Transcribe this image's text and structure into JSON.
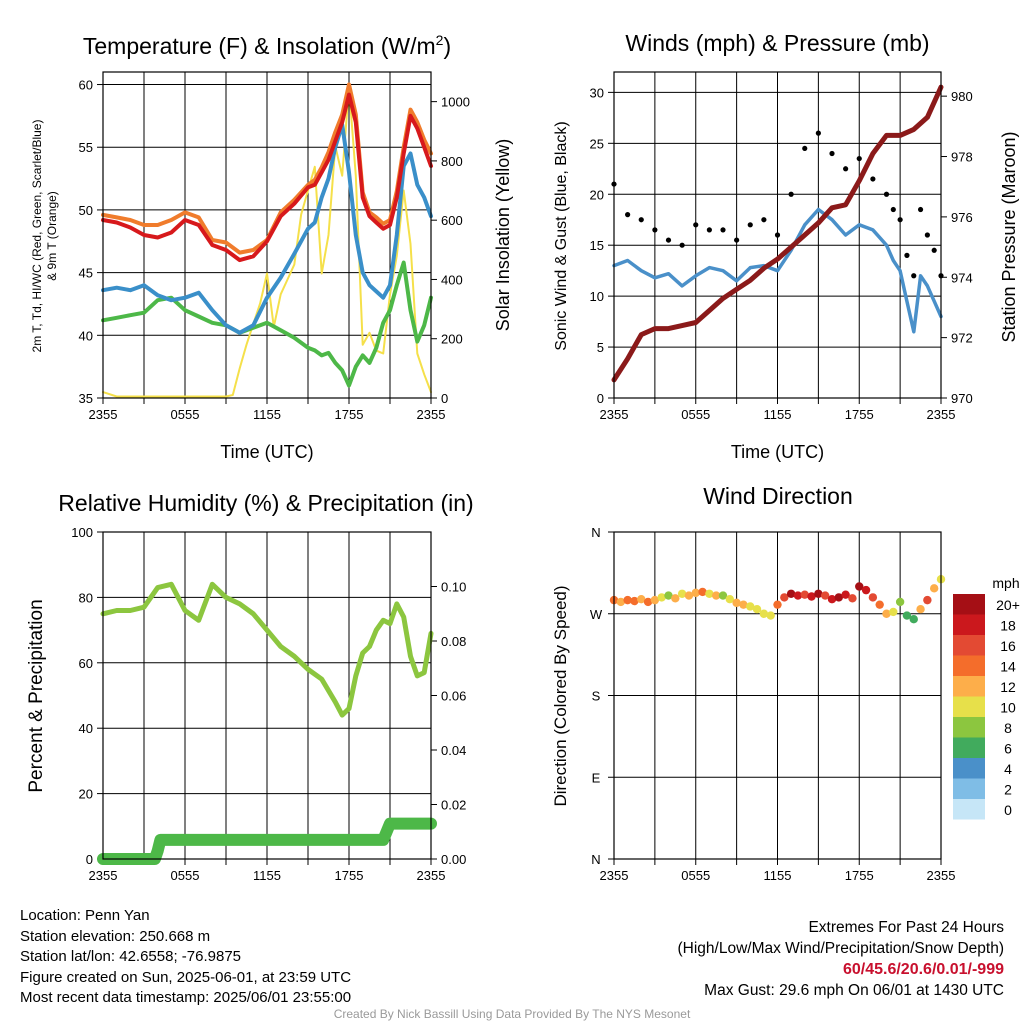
{
  "footer": {
    "location": "Location: Penn Yan",
    "elevation": "Station elevation: 250.668 m",
    "latlon": "Station lat/lon: 42.6558; -76.9875",
    "created": "Figure created on Sun, 2025-06-01, at 23:59 UTC",
    "recent": "Most recent data timestamp: 2025/06/01 23:55:00",
    "extremes_title": "Extremes For Past 24 Hours",
    "extremes_legend": "(High/Low/Max Wind/Precipitation/Snow Depth)",
    "extremes_values": "60/45.6/20.6/0.01/-999",
    "max_gust": "Max Gust: 29.6 mph On 06/01 at 1430 UTC",
    "credit": "Created By Nick Bassill Using Data Provided By The NYS Mesonet"
  },
  "colors": {
    "temp": "#d7191c",
    "temp9m": "#f07c2c",
    "hiwc": "#d7191c",
    "dewpoint": "#3a8fc9",
    "insolation": "#f5e04a",
    "rh": "#8cc63f",
    "precip": "#4db848",
    "wind": "#4a90c9",
    "gust": "#000000",
    "pressure": "#8b1a1a"
  },
  "chart_data": [
    {
      "type": "line",
      "title": "Temperature (F) & Insolation (W/m²)",
      "xlabel": "Time (UTC)",
      "ylabel": "2m T, Td, HI/WC (Red, Green, Scarlet/Blue) & 9m T (Orange)",
      "ylabel_line1": "2m T, Td, HI/WC (Red, Green, Scarlet/Blue)",
      "ylabel_line2": "& 9m T (Orange)",
      "y2label": "Solar Insolation (Yellow)",
      "xticks": [
        "2355",
        "0555",
        "1155",
        "1755",
        "2355"
      ],
      "xlim": [
        0,
        24
      ],
      "ylim": [
        35,
        61
      ],
      "y2lim": [
        0,
        1100
      ],
      "yticks": [
        35,
        40,
        45,
        50,
        55,
        60
      ],
      "y2ticks": [
        0,
        200,
        400,
        600,
        800,
        1000
      ],
      "series": [
        {
          "name": "2m T",
          "x": [
            0,
            1,
            2,
            3,
            4,
            5,
            6,
            7,
            8,
            9,
            10,
            11,
            12,
            13,
            14,
            15,
            15.5,
            16,
            16.5,
            17,
            17.5,
            18,
            18.5,
            19,
            19.5,
            20,
            20.5,
            21,
            21.5,
            22,
            22.5,
            23,
            23.5,
            24
          ],
          "values": [
            49.2,
            49.0,
            48.6,
            48.0,
            47.8,
            48.2,
            49.2,
            48.8,
            47.2,
            46.8,
            46.0,
            46.3,
            47.5,
            49.5,
            50.5,
            51.8,
            52.0,
            53.0,
            54.0,
            55.5,
            57.0,
            59.2,
            57.0,
            51.0,
            49.5,
            49.0,
            48.5,
            48.8,
            51.0,
            54.5,
            57.5,
            56.5,
            55.0,
            53.5
          ]
        },
        {
          "name": "9m T",
          "x": [
            0,
            1,
            2,
            3,
            4,
            5,
            6,
            7,
            8,
            9,
            10,
            11,
            12,
            13,
            14,
            15,
            15.5,
            16,
            16.5,
            17,
            17.5,
            18,
            18.5,
            19,
            19.5,
            20,
            20.5,
            21,
            21.5,
            22,
            22.5,
            23,
            23.5,
            24
          ],
          "values": [
            49.6,
            49.4,
            49.2,
            48.8,
            48.8,
            49.2,
            49.8,
            49.4,
            47.6,
            47.4,
            46.6,
            46.8,
            47.6,
            49.8,
            50.8,
            52.0,
            52.4,
            53.4,
            54.6,
            56.2,
            57.6,
            60.0,
            57.6,
            51.4,
            49.8,
            49.4,
            48.9,
            49.2,
            51.5,
            55.0,
            58.0,
            57.0,
            55.6,
            54.5
          ]
        },
        {
          "name": "Td",
          "x": [
            0,
            1,
            2,
            3,
            4,
            5,
            6,
            7,
            8,
            9,
            10,
            11,
            12,
            13,
            14,
            15,
            15.5,
            16,
            16.5,
            17,
            17.5,
            18,
            18.5,
            19,
            19.5,
            20,
            20.5,
            21,
            21.5,
            22,
            22.5,
            23,
            23.5,
            24
          ],
          "values": [
            41.2,
            41.4,
            41.6,
            41.8,
            42.8,
            43.0,
            42.0,
            41.5,
            41.0,
            40.8,
            40.2,
            40.6,
            41.0,
            40.4,
            39.8,
            39.0,
            38.8,
            38.4,
            38.6,
            37.8,
            37.2,
            36.0,
            37.5,
            38.4,
            37.8,
            39.0,
            41.0,
            42.0,
            44.0,
            45.8,
            42.0,
            39.5,
            40.8,
            43.0
          ]
        },
        {
          "name": "HI/WC",
          "x": [
            0,
            1,
            2,
            3,
            4,
            5,
            6,
            7,
            8,
            9,
            10,
            11,
            12,
            13,
            14,
            15,
            15.5,
            16,
            16.5,
            17,
            17.5,
            18,
            18.5,
            19,
            19.5,
            20,
            20.5,
            21,
            21.5,
            22,
            22.5,
            23,
            23.5,
            24
          ],
          "values": [
            43.6,
            43.8,
            43.6,
            44.0,
            43.2,
            42.8,
            43.0,
            43.4,
            42.0,
            40.8,
            40.2,
            40.8,
            43.0,
            44.6,
            46.5,
            48.5,
            49.0,
            51.0,
            52.5,
            55.0,
            56.8,
            53.0,
            48.0,
            45.0,
            44.0,
            43.5,
            43.0,
            44.0,
            48.0,
            53.5,
            54.5,
            52.0,
            51.0,
            49.5
          ]
        },
        {
          "name": "Insolation",
          "axis": "y2",
          "x": [
            0,
            1,
            2,
            3,
            4,
            5,
            6,
            7,
            8,
            9,
            9.5,
            10,
            10.5,
            11,
            11.5,
            12,
            12.5,
            13,
            13.5,
            14,
            14.5,
            15,
            15.5,
            16,
            16.5,
            17,
            17.5,
            18,
            18.5,
            19,
            19.5,
            20,
            20.5,
            21,
            21.5,
            22,
            22.5,
            23,
            23.5,
            24
          ],
          "values": [
            20,
            5,
            5,
            5,
            5,
            5,
            5,
            5,
            5,
            5,
            10,
            100,
            180,
            250,
            320,
            420,
            240,
            350,
            400,
            450,
            620,
            700,
            780,
            420,
            550,
            850,
            750,
            1050,
            750,
            180,
            220,
            160,
            150,
            350,
            480,
            700,
            520,
            150,
            80,
            20
          ]
        }
      ]
    },
    {
      "type": "line",
      "title": "Winds (mph) & Pressure (mb)",
      "xlabel": "Time (UTC)",
      "ylabel": "Sonic Wind & Gust (Blue, Black)",
      "y2label": "Station Pressure (Maroon)",
      "xticks": [
        "2355",
        "0555",
        "1155",
        "1755",
        "2355"
      ],
      "xlim": [
        0,
        24
      ],
      "ylim": [
        0,
        32
      ],
      "y2lim": [
        970,
        980.8
      ],
      "yticks": [
        0,
        5,
        10,
        15,
        20,
        25,
        30
      ],
      "y2ticks": [
        970,
        972,
        974,
        976,
        978,
        980
      ],
      "series": [
        {
          "name": "Wind",
          "x": [
            0,
            1,
            2,
            3,
            4,
            5,
            6,
            7,
            8,
            9,
            10,
            11,
            12,
            13,
            14,
            15,
            16,
            17,
            18,
            19,
            20,
            20.5,
            21,
            21.5,
            22,
            22.5,
            23,
            23.5,
            24
          ],
          "values": [
            13.0,
            13.5,
            12.5,
            11.8,
            12.2,
            11.0,
            12.0,
            12.8,
            12.5,
            11.5,
            12.8,
            13.0,
            12.5,
            14.5,
            17.0,
            18.5,
            17.5,
            16.0,
            17.0,
            16.5,
            15.0,
            13.5,
            12.5,
            9.5,
            6.5,
            12.0,
            11.0,
            9.5,
            8.0
          ]
        },
        {
          "name": "Gust",
          "x": [
            0,
            1,
            2,
            3,
            4,
            5,
            6,
            7,
            8,
            9,
            10,
            11,
            12,
            13,
            14,
            15,
            16,
            17,
            18,
            19,
            20,
            20.5,
            21,
            21.5,
            22,
            22.5,
            23,
            23.5,
            24
          ],
          "values": [
            21.0,
            18.0,
            17.5,
            16.5,
            15.5,
            15.0,
            17.0,
            16.5,
            16.5,
            15.5,
            17.0,
            17.5,
            16.0,
            20.0,
            24.5,
            26.0,
            24.0,
            22.5,
            23.5,
            21.5,
            20.0,
            18.5,
            17.5,
            14.0,
            12.0,
            18.5,
            16.0,
            14.5,
            12.0
          ]
        },
        {
          "name": "Pressure",
          "axis": "y2",
          "x": [
            0,
            1,
            2,
            3,
            4,
            5,
            6,
            7,
            8,
            9,
            10,
            11,
            12,
            13,
            14,
            15,
            16,
            17,
            18,
            19,
            20,
            21,
            22,
            23,
            24
          ],
          "values": [
            970.6,
            971.3,
            972.1,
            972.3,
            972.3,
            972.4,
            972.5,
            972.9,
            973.3,
            973.6,
            973.9,
            974.3,
            974.6,
            975.0,
            975.4,
            975.8,
            976.3,
            976.4,
            977.2,
            978.1,
            978.7,
            978.7,
            978.9,
            979.3,
            980.3
          ]
        }
      ]
    },
    {
      "type": "line",
      "title": "Relative Humidity (%) & Precipitation (in)",
      "ylabel": "Percent & Precipitation",
      "xticks": [
        "2355",
        "0555",
        "1155",
        "1755",
        "2355"
      ],
      "xlim": [
        0,
        24
      ],
      "ylim": [
        0,
        100
      ],
      "y2lim": [
        0,
        0.12
      ],
      "yticks": [
        0,
        20,
        40,
        60,
        80,
        100
      ],
      "y2ticks": [
        0.0,
        0.02,
        0.04,
        0.06,
        0.08,
        0.1
      ],
      "series": [
        {
          "name": "RH",
          "x": [
            0,
            1,
            2,
            3,
            4,
            5,
            6,
            7,
            8,
            9,
            10,
            11,
            12,
            13,
            14,
            15,
            16,
            17,
            17.5,
            18,
            18.5,
            19,
            19.5,
            20,
            20.5,
            21,
            21.5,
            22,
            22.5,
            23,
            23.5,
            24
          ],
          "values": [
            75,
            76,
            76,
            77,
            83,
            84,
            76,
            73,
            84,
            80,
            78,
            75,
            70,
            65,
            62,
            58,
            55,
            48,
            44,
            46,
            56,
            63,
            65,
            70,
            73,
            72,
            78,
            74,
            62,
            56,
            57,
            69
          ]
        },
        {
          "name": "Precipitation",
          "axis": "y2",
          "x": [
            0,
            1,
            2,
            3,
            3.8,
            4,
            4.2,
            5,
            6,
            8,
            10,
            12,
            14,
            16,
            18,
            20,
            20.5,
            21,
            22,
            23,
            24
          ],
          "values": [
            0,
            0,
            0,
            0,
            0,
            0.003,
            0.007,
            0.007,
            0.007,
            0.007,
            0.007,
            0.007,
            0.007,
            0.007,
            0.007,
            0.007,
            0.007,
            0.013,
            0.013,
            0.013,
            0.013
          ]
        }
      ]
    },
    {
      "type": "scatter",
      "title": "Wind Direction",
      "ylabel": "Direction (Colored By Speed)",
      "xticks": [
        "2355",
        "0555",
        "1155",
        "1755",
        "2355"
      ],
      "yticks": [
        "N",
        "E",
        "S",
        "W",
        "N"
      ],
      "xlim": [
        0,
        24
      ],
      "ylim": [
        0,
        360
      ],
      "legend_title": "mph",
      "legend": [
        {
          "label": "20+",
          "color": "#a50f15"
        },
        {
          "label": "18",
          "color": "#cb181d"
        },
        {
          "label": "16",
          "color": "#e34a33"
        },
        {
          "label": "14",
          "color": "#f46d2b"
        },
        {
          "label": "12",
          "color": "#fdae4a"
        },
        {
          "label": "10",
          "color": "#e7e04a"
        },
        {
          "label": "8",
          "color": "#8cc63f"
        },
        {
          "label": "6",
          "color": "#41ab5d"
        },
        {
          "label": "4",
          "color": "#4a90c9"
        },
        {
          "label": "2",
          "color": "#7fbde6"
        },
        {
          "label": "0",
          "color": "#c6e6f7"
        }
      ],
      "legend_placement": "right",
      "series": [
        {
          "name": "Direction",
          "x": [
            0,
            0.5,
            1,
            1.5,
            2,
            2.5,
            3,
            3.5,
            4,
            4.5,
            5,
            5.5,
            6,
            6.5,
            7,
            7.5,
            8,
            8.5,
            9,
            9.5,
            10,
            10.5,
            11,
            11.5,
            12,
            12.5,
            13,
            13.5,
            14,
            14.5,
            15,
            15.5,
            16,
            16.5,
            17,
            17.5,
            18,
            18.5,
            19,
            19.5,
            20,
            20.5,
            21,
            21.5,
            22,
            22.5,
            23,
            23.5,
            24
          ],
          "values": [
            285,
            283,
            285,
            284,
            286,
            283,
            285,
            288,
            290,
            287,
            292,
            290,
            293,
            294,
            292,
            290,
            290,
            286,
            282,
            280,
            278,
            275,
            270,
            268,
            280,
            288,
            292,
            290,
            291,
            289,
            292,
            290,
            286,
            288,
            291,
            287,
            300,
            296,
            288,
            280,
            270,
            272,
            283,
            268,
            264,
            275,
            285,
            298,
            308
          ],
          "speeds": [
            14,
            12,
            14,
            13,
            12,
            14,
            12,
            10,
            8,
            12,
            10,
            12,
            11,
            14,
            10,
            12,
            8,
            10,
            12,
            11,
            9,
            10,
            10,
            10,
            14,
            16,
            20,
            18,
            16,
            18,
            20,
            16,
            18,
            20,
            18,
            16,
            20,
            18,
            16,
            14,
            12,
            10,
            8,
            6,
            6,
            12,
            16,
            12,
            10
          ]
        }
      ]
    }
  ]
}
